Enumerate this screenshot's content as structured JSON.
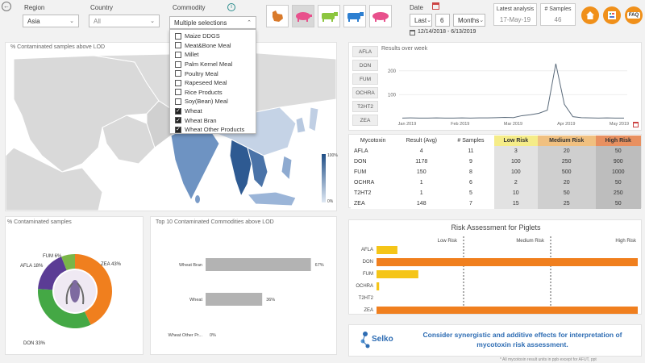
{
  "filters": {
    "region_label": "Region",
    "region_value": "Asia",
    "country_label": "Country",
    "country_value": "All",
    "commodity_label": "Commodity",
    "commodity_value": "Multiple selections",
    "commodity_options": [
      {
        "label": "Maize DDGS",
        "checked": false
      },
      {
        "label": "Meat&Bone Meal",
        "checked": false
      },
      {
        "label": "Millet",
        "checked": false
      },
      {
        "label": "Palm Kernel Meal",
        "checked": false
      },
      {
        "label": "Poultry Meal",
        "checked": false
      },
      {
        "label": "Rapeseed Meal",
        "checked": false
      },
      {
        "label": "Rice Products",
        "checked": false
      },
      {
        "label": "Soy(Bean) Meal",
        "checked": false
      },
      {
        "label": "Wheat",
        "checked": true
      },
      {
        "label": "Wheat Bran",
        "checked": true
      },
      {
        "label": "Wheat Other Products",
        "checked": true
      }
    ],
    "date_label": "Date",
    "date_mode": "Last",
    "date_number": "6",
    "date_unit": "Months",
    "date_range": "12/14/2018 - 6/13/2019",
    "latest_label": "Latest analysis",
    "latest_value": "17-May-19",
    "samples_label": "# Samples",
    "samples_value": "46",
    "faq_label": "FAQ"
  },
  "map": {
    "title": "% Contaminated samples above LOD",
    "scale_top": "100%",
    "scale_bottom": "0%"
  },
  "trend": {
    "title": "Results over week",
    "toxins": [
      "AFLA",
      "DON",
      "FUM",
      "OCHRA",
      "T2HT2",
      "ZEA"
    ],
    "chart_data": {
      "type": "line",
      "x": [
        "Jan 2019",
        "Feb 2019",
        "Mar 2019",
        "Apr 2019",
        "May 2019"
      ],
      "yticks": [
        "100",
        "200"
      ],
      "ylim": [
        0,
        250
      ]
    }
  },
  "table": {
    "headers": [
      "Mycotoxin",
      "Result (Avg)",
      "# Samples",
      "Low Risk",
      "Medium Risk",
      "High Risk"
    ],
    "rows": [
      [
        "AFLA",
        "4",
        "11",
        "3",
        "20",
        "50"
      ],
      [
        "DON",
        "1178",
        "9",
        "100",
        "250",
        "900"
      ],
      [
        "FUM",
        "150",
        "8",
        "100",
        "500",
        "1000"
      ],
      [
        "OCHRA",
        "1",
        "6",
        "2",
        "20",
        "50"
      ],
      [
        "T2HT2",
        "1",
        "5",
        "10",
        "50",
        "250"
      ],
      [
        "ZEA",
        "148",
        "7",
        "15",
        "25",
        "50"
      ]
    ]
  },
  "donut": {
    "title": "% Contaminated samples",
    "chart_data": {
      "type": "pie",
      "slices": [
        {
          "name": "ZEA",
          "value": 43,
          "label": "ZEA 43%",
          "color": "#f07f1e"
        },
        {
          "name": "DON",
          "value": 33,
          "label": "DON 33%",
          "color": "#44a845"
        },
        {
          "name": "AFLA",
          "value": 18,
          "label": "AFLA 18%",
          "color": "#5b3c95"
        },
        {
          "name": "FUM",
          "value": 6,
          "label": "FUM 6%",
          "color": "#7ab648"
        }
      ]
    }
  },
  "commodities": {
    "title": "Top 10 Contaminated Commodities above LOD",
    "chart_data": {
      "type": "bar",
      "categories": [
        "Wheat Bran",
        "Wheat",
        "Wheat Other Pr..."
      ],
      "values": [
        67,
        36,
        0
      ],
      "labels": [
        "67%",
        "36%",
        "0%"
      ],
      "xlim": [
        0,
        100
      ]
    }
  },
  "risk": {
    "title": "Risk Assessment for Piglets",
    "zones": [
      "Low Risk",
      "Medium Risk",
      "High Risk"
    ],
    "chart_data": {
      "type": "bar",
      "categories": [
        "AFLA",
        "DON",
        "FUM",
        "OCHRA",
        "T2HT2",
        "ZEA"
      ],
      "values": [
        0.08,
        1.0,
        0.16,
        0.01,
        0.0,
        1.0
      ],
      "colors": [
        "#f5c518",
        "#f07f1e",
        "#f5c518",
        "#f5c518",
        "#f5c518",
        "#f07f1e"
      ]
    }
  },
  "footer": {
    "logo_text": "Selko",
    "message": "Consider synergistic and additive effects for interpretation of mycotoxin risk assessment.",
    "note": "* All mycotoxin result units in ppb except for AFUT, ppt"
  }
}
